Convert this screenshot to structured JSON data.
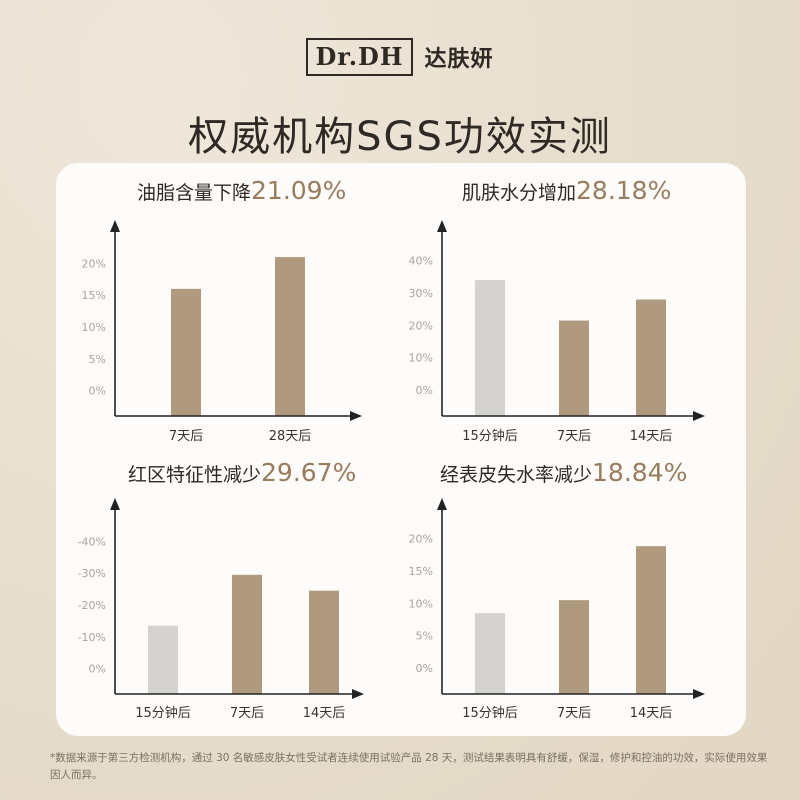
{
  "header": {
    "logo_text": "Dr.DH",
    "brand_cn": "达肤妍",
    "title": "权威机构SGS功效实测"
  },
  "colors": {
    "accent": "#b09a7e",
    "baseline": "#d5d3d0",
    "highlight": "#9a7c5d"
  },
  "chart_data": [
    {
      "type": "bar",
      "title": "油脂含量下降",
      "highlight": "21.09%",
      "categories": [
        "7天后",
        "28天后"
      ],
      "values": [
        16,
        21
      ],
      "ylim": [
        -4,
        24
      ],
      "yticks": [
        0,
        5,
        10,
        15,
        20
      ],
      "yticklabels": [
        "0%",
        "5%",
        "10%",
        "15%",
        "20%"
      ],
      "bar_colors": [
        "accent",
        "accent"
      ]
    },
    {
      "type": "bar",
      "title": "肌肤水分增加",
      "highlight": "28.18%",
      "categories": [
        "15分钟后",
        "7天后",
        "14天后"
      ],
      "values": [
        34,
        21.5,
        28
      ],
      "ylim": [
        -8,
        47
      ],
      "yticks": [
        0,
        10,
        20,
        30,
        40
      ],
      "yticklabels": [
        "0%",
        "10%",
        "20%",
        "30%",
        "40%"
      ],
      "bar_colors": [
        "baseline",
        "accent",
        "accent"
      ]
    },
    {
      "type": "bar",
      "title": "红区特征性减少",
      "highlight": "29.67%",
      "categories": [
        "15分钟后",
        "7天后",
        "14天后"
      ],
      "values": [
        -13.5,
        -29.5,
        -24.5
      ],
      "ylim": [
        -48,
        8
      ],
      "yticks": [
        0,
        -10,
        -20,
        -30,
        -40
      ],
      "yticklabels": [
        "0%",
        "-10%",
        "-20%",
        "-30%",
        "-40%"
      ],
      "bar_colors": [
        "baseline",
        "accent",
        "accent"
      ]
    },
    {
      "type": "bar",
      "title": "经表皮失水率减少",
      "highlight": "18.84%",
      "categories": [
        "15分钟后",
        "7天后",
        "14天后"
      ],
      "values": [
        8.5,
        10.5,
        18.84
      ],
      "ylim": [
        -4,
        23.5
      ],
      "yticks": [
        0,
        5,
        10,
        15,
        20
      ],
      "yticklabels": [
        "0%",
        "5%",
        "10%",
        "15%",
        "20%"
      ],
      "bar_colors": [
        "baseline",
        "accent",
        "accent"
      ]
    }
  ],
  "footnote": "*数据来源于第三方检测机构，通过 30 名敏感皮肤女性受试者连续使用试验产品 28 天，测试结果表明具有舒缓，保湿，修护和控油的功效，实际使用效果因人而异。"
}
